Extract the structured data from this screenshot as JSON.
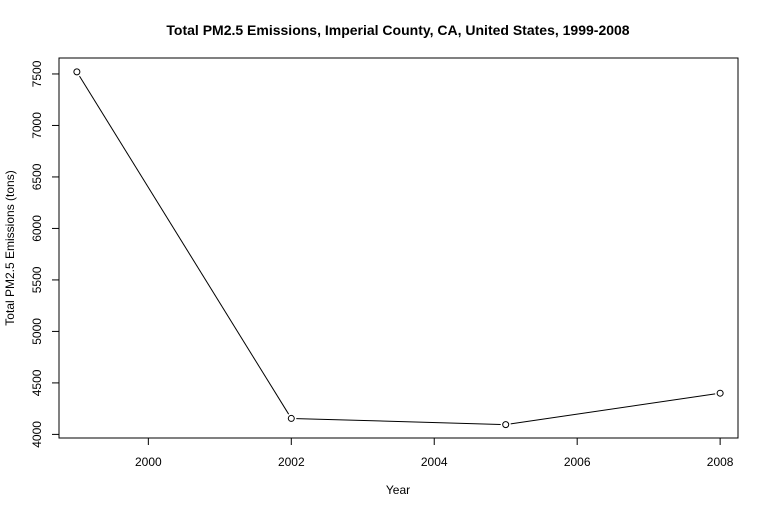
{
  "chart_data": {
    "type": "line",
    "title": "Total PM2.5 Emissions, Imperial County, CA, United States, 1999-2008",
    "xlabel": "Year",
    "ylabel": "Total PM2.5 Emissions (tons)",
    "x": [
      1999,
      2002,
      2005,
      2008
    ],
    "series": [
      {
        "values": [
          7520,
          4155,
          4095,
          4400
        ]
      }
    ],
    "xlim": [
      1998.75,
      2008.25
    ],
    "ylim": [
      3965,
      7655
    ],
    "xticks": [
      2000,
      2002,
      2004,
      2006,
      2008
    ],
    "yticks": [
      4000,
      4500,
      5000,
      5500,
      6000,
      6500,
      7000,
      7500
    ],
    "xtick_labels": [
      "2000",
      "2002",
      "2004",
      "2006",
      "2008"
    ],
    "ytick_labels": [
      "4000",
      "4500",
      "5000",
      "5500",
      "6000",
      "6500",
      "7000",
      "7500"
    ],
    "grid": false,
    "markers": "open-circle",
    "line_color": "#000000"
  }
}
